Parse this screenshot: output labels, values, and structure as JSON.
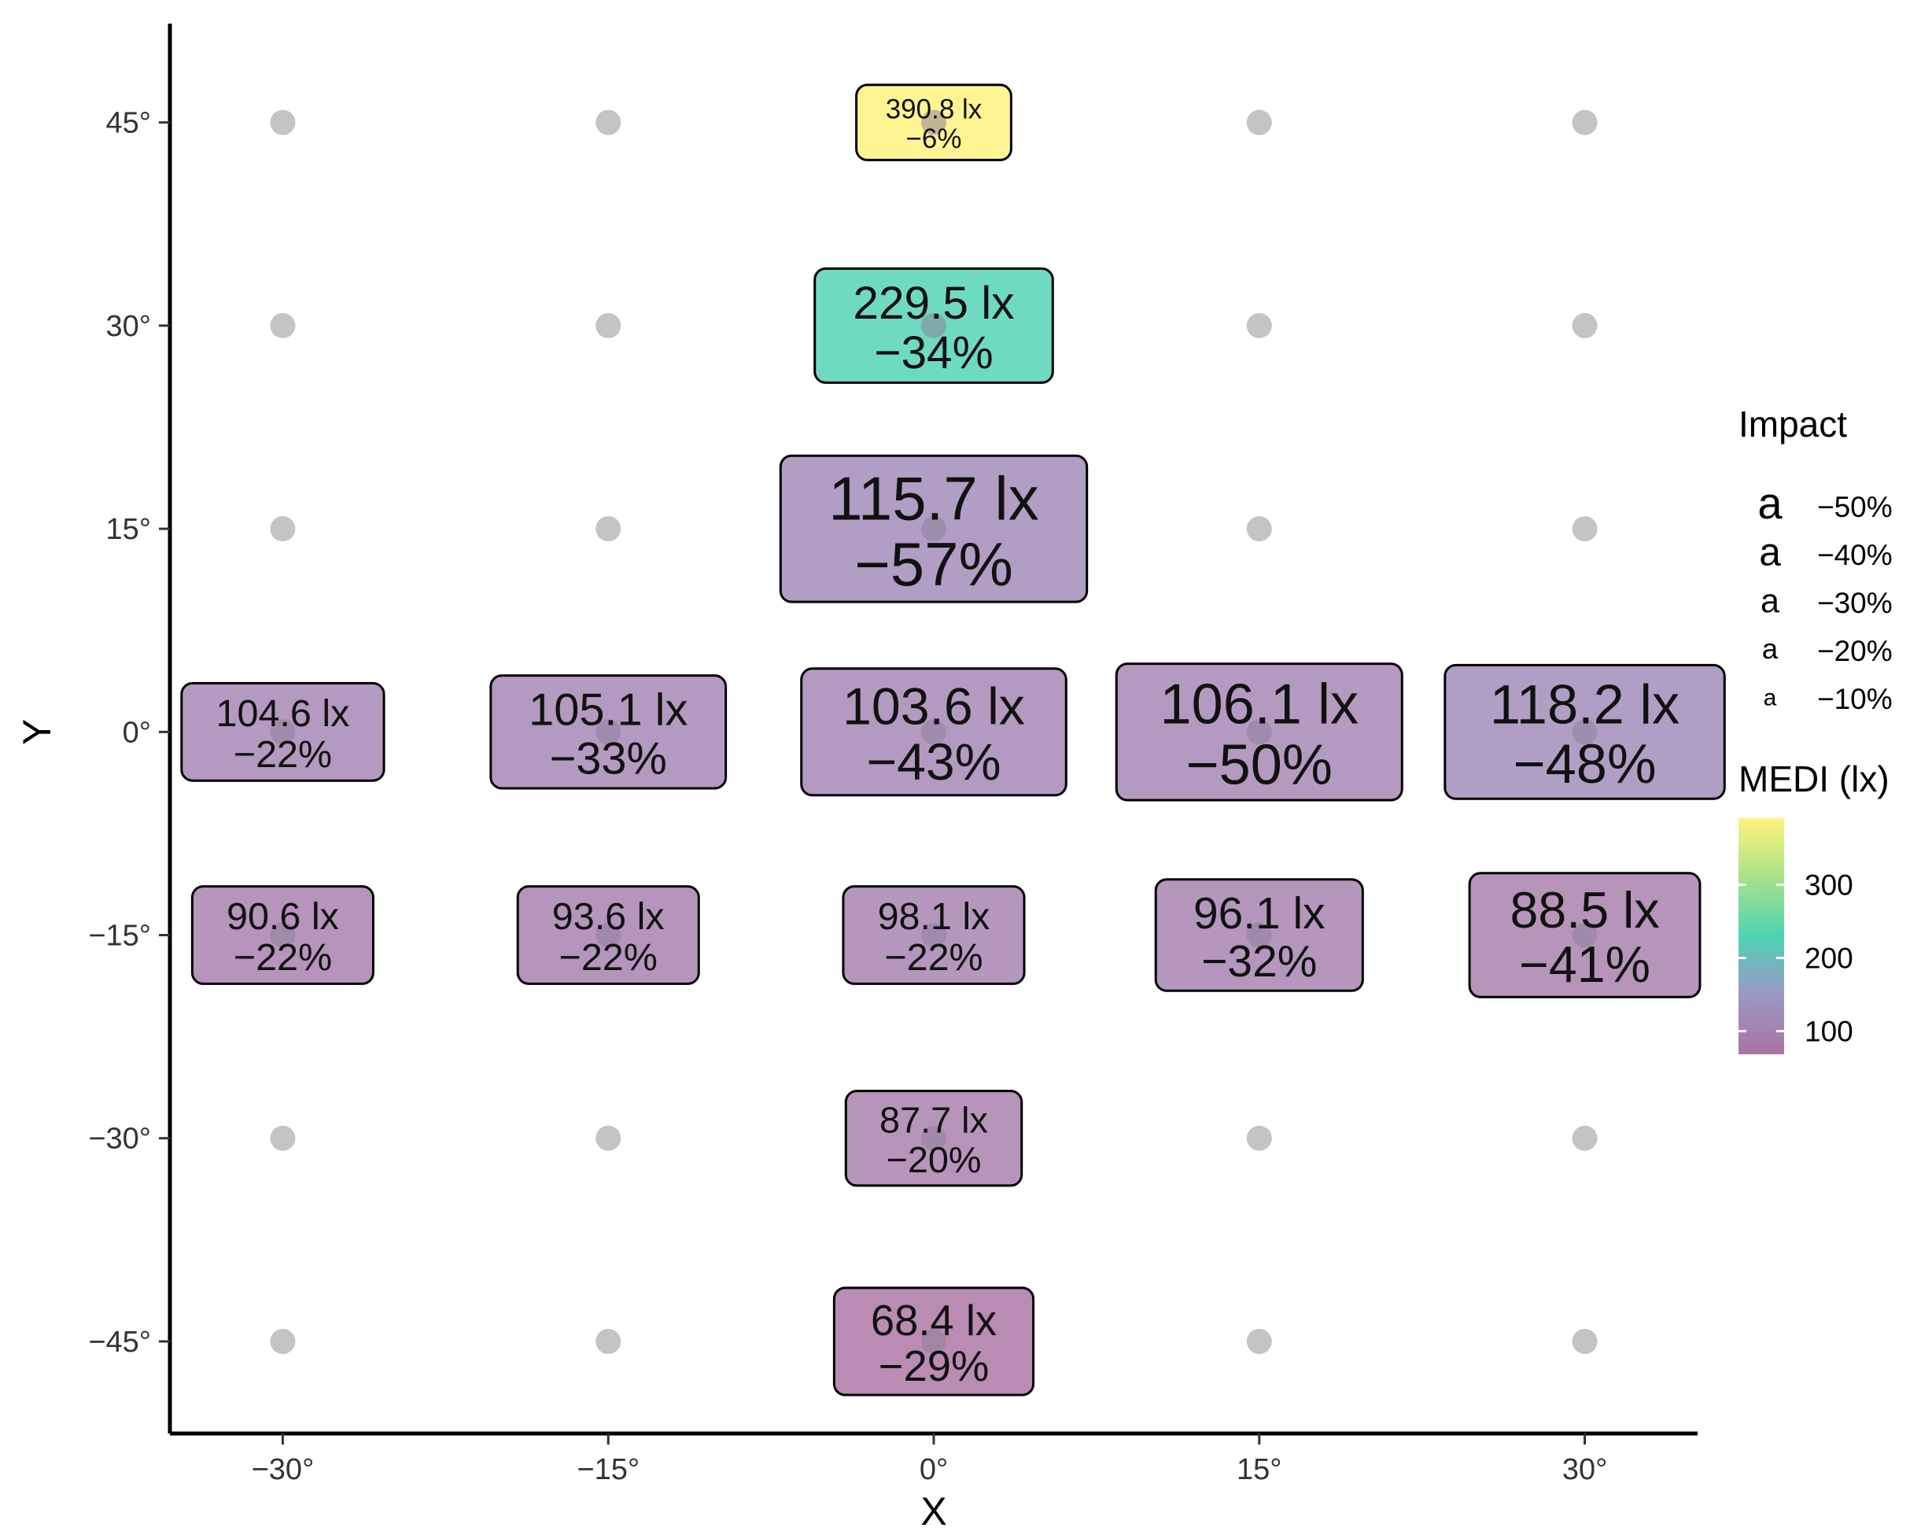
{
  "chart_data": {
    "type": "scatter",
    "xlabel": "X",
    "ylabel": "Y",
    "xlim": [
      -35.2,
      35.2
    ],
    "ylim": [
      -51.8,
      52.3
    ],
    "x_ticks": [
      -30,
      -15,
      0,
      15,
      30
    ],
    "y_ticks": [
      -45,
      -30,
      -15,
      0,
      15,
      30,
      45
    ],
    "x_tick_labels": [
      "−30°",
      "−15°",
      "0°",
      "15°",
      "30°"
    ],
    "y_tick_labels": [
      "−45°",
      "−30°",
      "−15°",
      "0°",
      "15°",
      "30°",
      "45°"
    ],
    "grid_points": [
      {
        "x": -30,
        "y": 45
      },
      {
        "x": -15,
        "y": 45
      },
      {
        "x": 15,
        "y": 45
      },
      {
        "x": 30,
        "y": 45
      },
      {
        "x": -30,
        "y": 30
      },
      {
        "x": -15,
        "y": 30
      },
      {
        "x": 15,
        "y": 30
      },
      {
        "x": 30,
        "y": 30
      },
      {
        "x": -30,
        "y": 15
      },
      {
        "x": -15,
        "y": 15
      },
      {
        "x": 15,
        "y": 15
      },
      {
        "x": 30,
        "y": 15
      },
      {
        "x": -30,
        "y": -30
      },
      {
        "x": -15,
        "y": -30
      },
      {
        "x": 15,
        "y": -30
      },
      {
        "x": 30,
        "y": -30
      },
      {
        "x": -30,
        "y": -45
      },
      {
        "x": -15,
        "y": -45
      },
      {
        "x": 15,
        "y": -45
      },
      {
        "x": 30,
        "y": -45
      }
    ],
    "labels": [
      {
        "x": 0,
        "y": 45,
        "medi": 390.8,
        "medi_label": "390.8 lx",
        "impact": -6,
        "impact_label": "−6%"
      },
      {
        "x": 0,
        "y": 30,
        "medi": 229.5,
        "medi_label": "229.5 lx",
        "impact": -34,
        "impact_label": "−34%"
      },
      {
        "x": 0,
        "y": 15,
        "medi": 115.7,
        "medi_label": "115.7 lx",
        "impact": -57,
        "impact_label": "−57%"
      },
      {
        "x": -30,
        "y": 0,
        "medi": 104.6,
        "medi_label": "104.6 lx",
        "impact": -22,
        "impact_label": "−22%"
      },
      {
        "x": -15,
        "y": 0,
        "medi": 105.1,
        "medi_label": "105.1 lx",
        "impact": -33,
        "impact_label": "−33%"
      },
      {
        "x": 0,
        "y": 0,
        "medi": 103.6,
        "medi_label": "103.6 lx",
        "impact": -43,
        "impact_label": "−43%"
      },
      {
        "x": 15,
        "y": 0,
        "medi": 106.1,
        "medi_label": "106.1 lx",
        "impact": -50,
        "impact_label": "−50%"
      },
      {
        "x": 30,
        "y": 0,
        "medi": 118.2,
        "medi_label": "118.2 lx",
        "impact": -48,
        "impact_label": "−48%"
      },
      {
        "x": -30,
        "y": -15,
        "medi": 90.6,
        "medi_label": "90.6 lx",
        "impact": -22,
        "impact_label": "−22%"
      },
      {
        "x": -15,
        "y": -15,
        "medi": 93.6,
        "medi_label": "93.6 lx",
        "impact": -22,
        "impact_label": "−22%"
      },
      {
        "x": 0,
        "y": -15,
        "medi": 98.1,
        "medi_label": "98.1 lx",
        "impact": -22,
        "impact_label": "−22%"
      },
      {
        "x": 15,
        "y": -15,
        "medi": 96.1,
        "medi_label": "96.1 lx",
        "impact": -32,
        "impact_label": "−32%"
      },
      {
        "x": 30,
        "y": -15,
        "medi": 88.5,
        "medi_label": "88.5 lx",
        "impact": -41,
        "impact_label": "−41%"
      },
      {
        "x": 0,
        "y": -30,
        "medi": 87.7,
        "medi_label": "87.7 lx",
        "impact": -20,
        "impact_label": "−20%"
      },
      {
        "x": 0,
        "y": -45,
        "medi": 68.4,
        "medi_label": "68.4 lx",
        "impact": -29,
        "impact_label": "−29%"
      }
    ],
    "legend_size": {
      "title": "Impact",
      "glyph": "a",
      "entries": [
        {
          "value": -50,
          "label": "−50%"
        },
        {
          "value": -40,
          "label": "−40%"
        },
        {
          "value": -30,
          "label": "−30%"
        },
        {
          "value": -20,
          "label": "−20%"
        },
        {
          "value": -10,
          "label": "−10%"
        }
      ]
    },
    "legend_color": {
      "title": "MEDI (lx)",
      "range": [
        68.4,
        390.8
      ],
      "ticks": [
        100,
        200,
        300
      ],
      "tick_labels": [
        "100",
        "200",
        "300"
      ],
      "palette": [
        "#ab73a3",
        "#9a97c5",
        "#4fd2b4",
        "#a8e289",
        "#fff27a"
      ],
      "palette_stops": [
        0,
        0.25,
        0.5,
        0.75,
        1
      ]
    },
    "legend_position": "right",
    "grid": false
  }
}
